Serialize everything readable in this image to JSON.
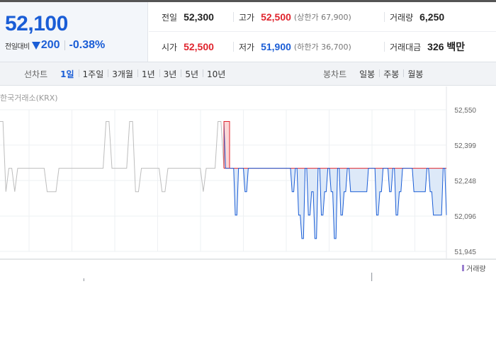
{
  "quote": {
    "price": "52,100",
    "change_label": "전일대비",
    "change_value": "200",
    "change_rate": "-0.38%",
    "direction": "down"
  },
  "stats": {
    "prev_close_label": "전일",
    "prev_close": "52,300",
    "high_label": "고가",
    "high": "52,500",
    "upper_limit": "(상한가 67,900)",
    "volume_label": "거래량",
    "volume": "6,250",
    "open_label": "시가",
    "open": "52,500",
    "low_label": "저가",
    "low": "51,900",
    "lower_limit": "(하한가 36,700)",
    "amount_label": "거래대금",
    "amount": "326 백만"
  },
  "tabs": {
    "line_label": "선차트",
    "line_items": [
      "1일",
      "1주일",
      "3개월",
      "1년",
      "3년",
      "5년",
      "10년"
    ],
    "line_active": "1일",
    "candle_label": "봉차트",
    "candle_items": [
      "일봉",
      "주봉",
      "월봉"
    ]
  },
  "source_label": "한국거래소(KRX)",
  "volume_legend": "거래량",
  "colors": {
    "up": "#e0242d",
    "down": "#1a5dd6",
    "grey_line": "#bdbdbd",
    "fill_down": "#dde9f8",
    "fill_up": "#fbd7d7",
    "volume": "#9b7fcf"
  },
  "chart_data": {
    "type": "line",
    "ylim": [
      51945,
      52550
    ],
    "yticks": [
      "52,550",
      "52,399",
      "52,248",
      "52,096",
      "51,945"
    ],
    "ytick_values": [
      52550,
      52399,
      52248,
      52096,
      51945
    ],
    "reference": 52300,
    "pre_session": [
      52500,
      52500,
      52200,
      52300,
      52300,
      52200,
      52300,
      52300,
      52300,
      52300,
      52300,
      52300,
      52300,
      52300,
      52300,
      52300,
      52200,
      52200,
      52200,
      52200,
      52300,
      52300,
      52300,
      52300,
      52300,
      52300,
      52300,
      52300,
      52300,
      52300,
      52300,
      52300,
      52300,
      52300,
      52300,
      52300,
      52500,
      52500,
      52300,
      52300,
      52300,
      52300,
      52300,
      52300,
      52500,
      52500,
      52200,
      52200,
      52300,
      52300,
      52300,
      52300,
      52300,
      52300,
      52300,
      52200,
      52200,
      52300,
      52300,
      52300,
      52300,
      52300,
      52300,
      52300,
      52300,
      52300,
      52300,
      52300,
      52300,
      52200,
      52300,
      52300,
      52300,
      52300,
      52500,
      52500,
      52300
    ],
    "session": [
      52500,
      52300,
      52300,
      52300,
      52300,
      52300,
      52300,
      52100,
      52100,
      52300,
      52300,
      52300,
      52300,
      52200,
      52200,
      52300,
      52300,
      52300,
      52300,
      52300,
      52300,
      52300,
      52300,
      52300,
      52300,
      52300,
      52300,
      52300,
      52300,
      52300,
      52300,
      52300,
      52300,
      52300,
      52300,
      52300,
      52300,
      52300,
      52300,
      52300,
      52300,
      52300,
      52200,
      52200,
      52300,
      52300,
      52100,
      52100,
      52000,
      52000,
      52300,
      52300,
      52100,
      52100,
      52200,
      52200,
      52000,
      52000,
      52300,
      52300,
      52100,
      52100,
      52200,
      52200,
      52300,
      52300,
      52200,
      52200,
      52000,
      52000,
      52300,
      52300,
      52100,
      52100,
      52200,
      52200,
      52300,
      52300,
      52200,
      52200,
      52200,
      52200,
      52200,
      52200,
      52200,
      52200,
      52200,
      52200,
      52200,
      52300,
      52300,
      52300,
      52300,
      52300,
      52100,
      52100,
      52200,
      52200,
      52300,
      52300,
      52300,
      52300,
      52200,
      52200,
      52300,
      52300,
      52100,
      52100,
      52200,
      52200,
      52300,
      52300,
      52300,
      52300,
      52300,
      52300,
      52300,
      52200,
      52200,
      52200,
      52200,
      52200,
      52200,
      52200,
      52200,
      52300,
      52300,
      52200,
      52200,
      52100,
      52100,
      52100,
      52100,
      52100,
      52100,
      52300,
      52300,
      52100
    ],
    "volume_bars": [
      {
        "slot": 0.187,
        "value": 1
      },
      {
        "slot": 0.832,
        "value": 3
      }
    ],
    "legend": [
      "거래량"
    ]
  }
}
